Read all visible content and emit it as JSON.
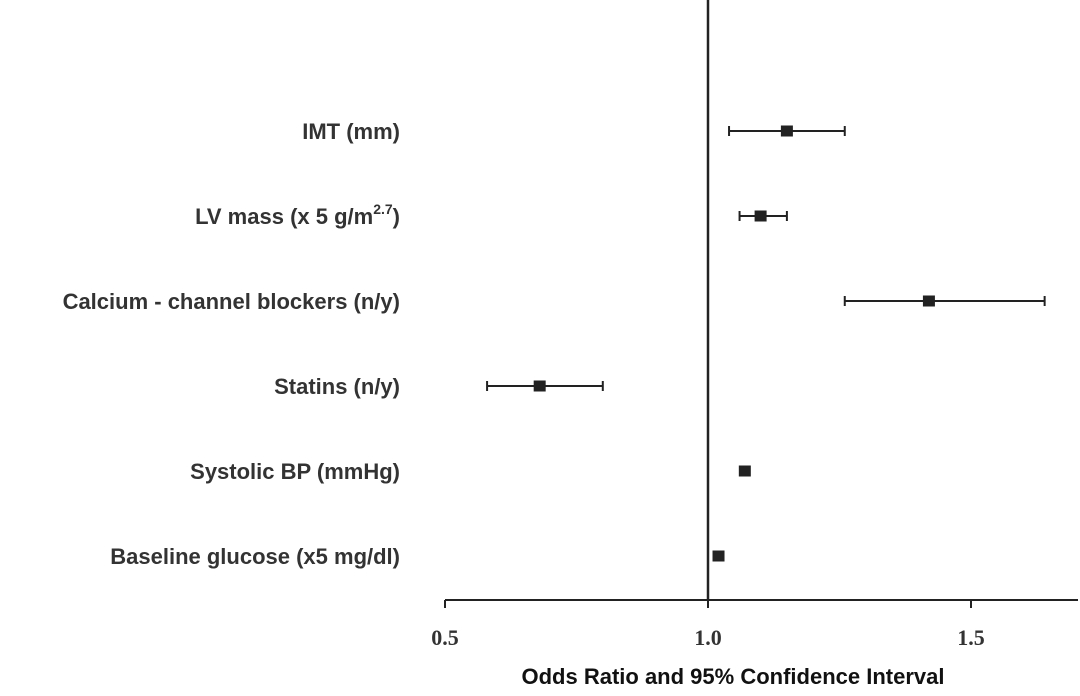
{
  "chart_data": {
    "type": "forest",
    "title": "",
    "xlabel": "Odds Ratio and 95% Confidence Interval",
    "ylabel": "",
    "xlim": [
      0.5,
      1.7
    ],
    "reference_line": 1.0,
    "x_ticks": [
      0.5,
      1.0,
      1.5
    ],
    "x_tick_labels": [
      "0.5",
      "1.0",
      "1.5"
    ],
    "categories": [
      {
        "label": "IMT (mm)",
        "label_main": "IMT (mm)",
        "label_sup": "",
        "label_tail": "",
        "or": 1.15,
        "ci_low": 1.04,
        "ci_high": 1.26
      },
      {
        "label": "LV mass (x 5 g/m2.7)",
        "label_main": "LV mass (x 5 g/m",
        "label_sup": "2.7",
        "label_tail": ")",
        "or": 1.1,
        "ci_low": 1.06,
        "ci_high": 1.15
      },
      {
        "label": "Calcium - channel blockers (n/y)",
        "label_main": "Calcium - channel blockers (n/y)",
        "label_sup": "",
        "label_tail": "",
        "or": 1.42,
        "ci_low": 1.26,
        "ci_high": 1.64
      },
      {
        "label": "Statins (n/y)",
        "label_main": "Statins (n/y)",
        "label_sup": "",
        "label_tail": "",
        "or": 0.68,
        "ci_low": 0.58,
        "ci_high": 0.8
      },
      {
        "label": "Systolic BP (mmHg)",
        "label_main": "Systolic BP (mmHg)",
        "label_sup": "",
        "label_tail": "",
        "or": 1.07,
        "ci_low": 1.065,
        "ci_high": 1.075
      },
      {
        "label": "Baseline glucose (x5 mg/dl)",
        "label_main": "Baseline glucose (x5 mg/dl)",
        "label_sup": "",
        "label_tail": "",
        "or": 1.02,
        "ci_low": 1.015,
        "ci_high": 1.025
      }
    ],
    "colors": {
      "marker": "#222222",
      "line": "#222222",
      "text": "#333333"
    }
  }
}
